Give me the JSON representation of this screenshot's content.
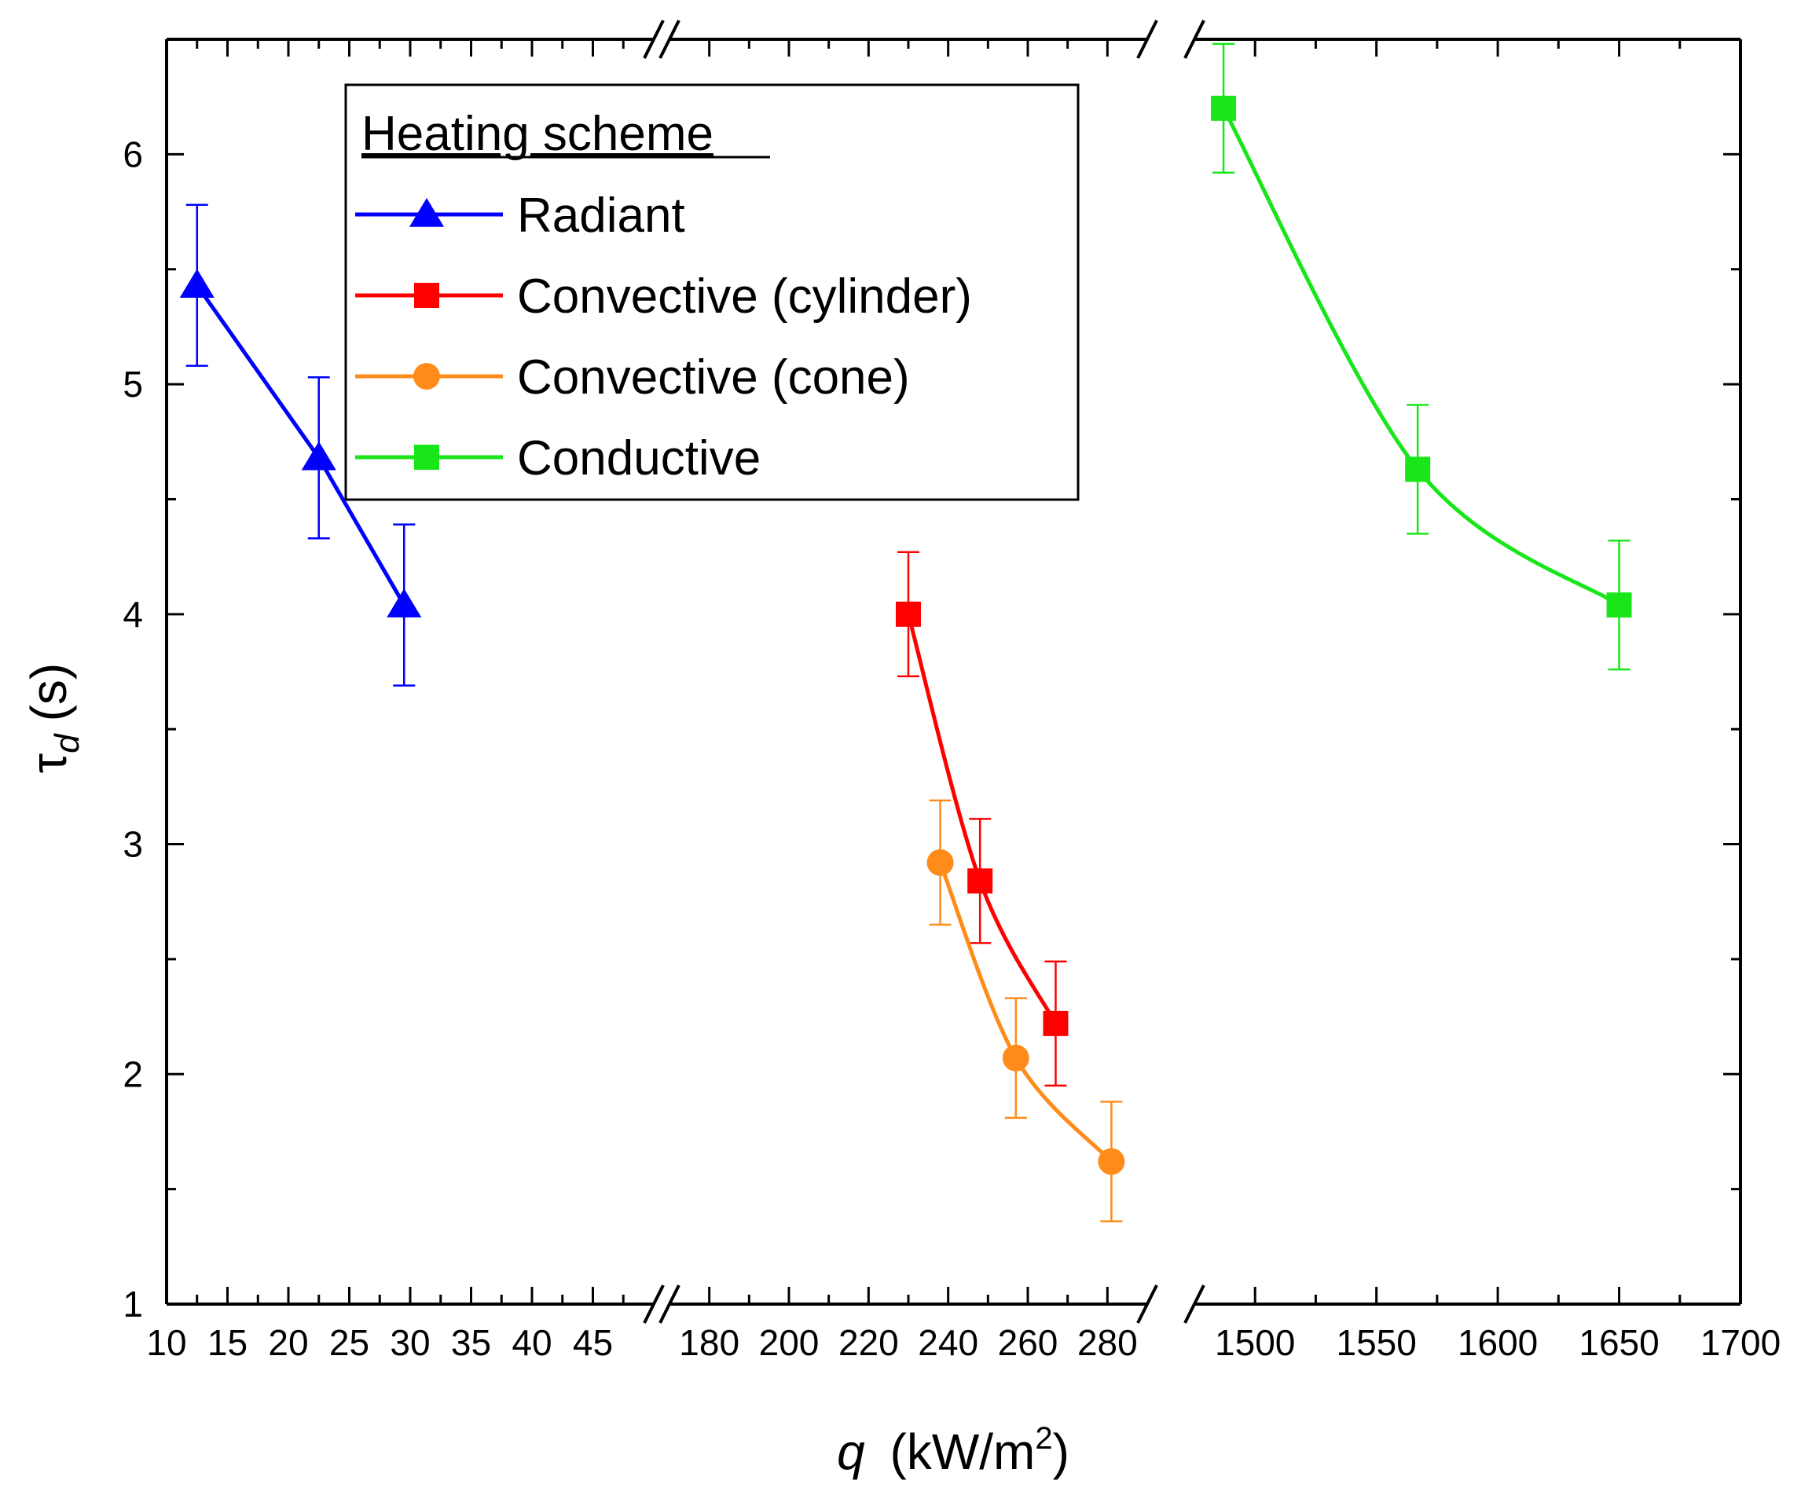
{
  "chart_data": {
    "type": "line",
    "title": "",
    "xlabel_var": "q",
    "xlabel_unit_pre": "(kW/m",
    "xlabel_sup": "2",
    "xlabel_unit_post": ")",
    "ylabel_var": "τ",
    "ylabel_sub": "d",
    "ylabel_unit": "(s)",
    "ylim": [
      1,
      6.5
    ],
    "yticks": [
      1,
      2,
      3,
      4,
      5,
      6
    ],
    "ytick_labels": [
      "1",
      "2",
      "3",
      "4",
      "5",
      "6"
    ],
    "broken_x_axis": true,
    "segments": [
      {
        "name": "segment-1",
        "xlim": [
          10,
          50
        ],
        "ticks": [
          10,
          15,
          20,
          25,
          30,
          35,
          40,
          45
        ],
        "tick_labels": [
          "10",
          "15",
          "20",
          "25",
          "30",
          "35",
          "40",
          "45"
        ],
        "minor_ticks": [
          12.5,
          17.5,
          22.5,
          27.5,
          32.5,
          37.5,
          42.5,
          47.5
        ]
      },
      {
        "name": "segment-2",
        "xlim": [
          170,
          290
        ],
        "ticks": [
          180,
          200,
          220,
          240,
          260,
          280
        ],
        "tick_labels": [
          "180",
          "200",
          "220",
          "240",
          "260",
          "280"
        ],
        "minor_ticks": [
          190,
          210,
          230,
          250,
          270
        ]
      },
      {
        "name": "segment-3",
        "xlim": [
          1475,
          1700
        ],
        "ticks": [
          1500,
          1550,
          1600,
          1650,
          1700
        ],
        "tick_labels": [
          "1500",
          "1550",
          "1600",
          "1650",
          "1700"
        ],
        "minor_ticks": [
          1525,
          1575,
          1625,
          1675
        ]
      }
    ],
    "legend": {
      "title": "Heating scheme",
      "position": "top-center"
    },
    "series": [
      {
        "name": "Radiant",
        "color": "#0000ff",
        "marker": "triangle",
        "segment": 0,
        "points": [
          {
            "x": 12.5,
            "y": 5.43,
            "err": 0.35
          },
          {
            "x": 22.5,
            "y": 4.68,
            "err": 0.35
          },
          {
            "x": 29.5,
            "y": 4.04,
            "err": 0.35
          }
        ]
      },
      {
        "name": "Convective (cylinder)",
        "color": "#ff0000",
        "marker": "square",
        "segment": 1,
        "points": [
          {
            "x": 230,
            "y": 4.0,
            "err": 0.27
          },
          {
            "x": 248,
            "y": 2.84,
            "err": 0.27
          },
          {
            "x": 267,
            "y": 2.22,
            "err": 0.27
          }
        ]
      },
      {
        "name": "Convective (cone)",
        "color": "#ff8c1a",
        "marker": "circle",
        "segment": 1,
        "points": [
          {
            "x": 238,
            "y": 2.92,
            "err": 0.27
          },
          {
            "x": 257,
            "y": 2.07,
            "err": 0.26
          },
          {
            "x": 281,
            "y": 1.62,
            "err": 0.26
          }
        ]
      },
      {
        "name": "Conductive",
        "color": "#19e619",
        "marker": "square",
        "segment": 2,
        "points": [
          {
            "x": 1487,
            "y": 6.2,
            "err": 0.28
          },
          {
            "x": 1567,
            "y": 4.63,
            "err": 0.28
          },
          {
            "x": 1650,
            "y": 4.04,
            "err": 0.28
          }
        ]
      }
    ]
  }
}
